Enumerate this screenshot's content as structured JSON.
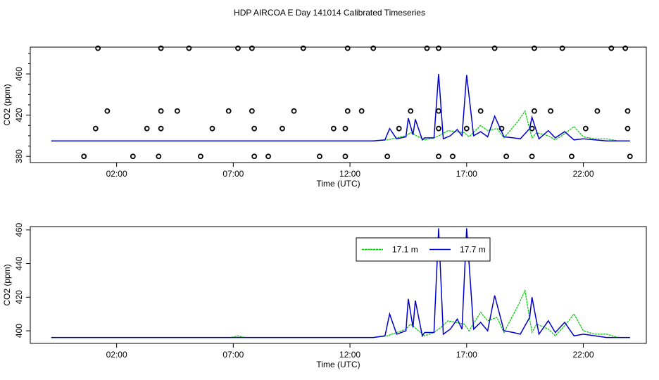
{
  "title": "HDP AIRCOA E  Day 141014  Calibrated Timeseries",
  "colors": {
    "green": "#00c800",
    "blue": "#0000cc",
    "markers": "#000000"
  },
  "chart_data": [
    {
      "type": "scatter",
      "panel": "top",
      "xlabel": "Time (UTC)",
      "ylabel": "CO2 (ppm)",
      "xlim": [
        -1.7,
        24.7
      ],
      "ylim": [
        374,
        486
      ],
      "xticks": [
        2,
        7,
        12,
        17,
        22
      ],
      "xtick_labels": [
        "02:00",
        "07:00",
        "12:00",
        "17:00",
        "22:00"
      ],
      "yticks": [
        380,
        420,
        460
      ],
      "ytick_labels": [
        "380",
        "420",
        "460"
      ],
      "markers": {
        "level_380": [
          0.6,
          2.7,
          3.8,
          5.6,
          7.9,
          8.5,
          10.7,
          11.8,
          13.6,
          15.8,
          16.4,
          18.7,
          19.8,
          21.5,
          24.0
        ],
        "level_407": [
          1.1,
          3.3,
          3.9,
          6.1,
          7.9,
          9.1,
          11.3,
          11.8,
          14.1,
          15.8,
          17.0,
          18.5,
          19.8,
          22.1,
          23.9
        ],
        "level_424": [
          1.6,
          3.9,
          4.6,
          6.8,
          7.8,
          9.6,
          11.9,
          12.5,
          14.6,
          15.8,
          17.6,
          19.9,
          20.6,
          22.6,
          23.9
        ],
        "level_485": [
          1.2,
          3.9,
          5.1,
          7.2,
          7.8,
          10.0,
          11.9,
          13.0,
          15.3,
          15.8,
          18.2,
          19.9,
          21.1,
          23.2,
          23.8
        ]
      },
      "series": [
        {
          "color": "#00c800",
          "x": [
            -0.8,
            13.0,
            13.6,
            14.0,
            14.4,
            14.6,
            15.2,
            15.6,
            15.9,
            16.2,
            16.9,
            17.1,
            17.6,
            17.9,
            18.3,
            18.6,
            19.2,
            19.5,
            19.8,
            20.0,
            20.5,
            20.8,
            21.2,
            21.6,
            22.0,
            22.5,
            23.0,
            23.5,
            24.0
          ],
          "y": [
            395,
            395,
            396,
            398,
            400,
            403,
            396,
            398,
            401,
            405,
            403,
            399,
            410,
            405,
            407,
            398,
            414,
            424,
            398,
            403,
            400,
            396,
            402,
            409,
            399,
            397,
            397,
            395,
            395
          ]
        },
        {
          "color": "#0000cc",
          "x": [
            -0.8,
            13.0,
            13.5,
            13.7,
            14.0,
            14.4,
            14.5,
            14.7,
            14.8,
            15.1,
            15.2,
            15.6,
            15.8,
            16.0,
            16.3,
            16.6,
            16.8,
            17.0,
            17.3,
            17.6,
            17.9,
            18.2,
            18.6,
            19.0,
            19.3,
            19.7,
            19.8,
            20.1,
            20.5,
            20.8,
            21.2,
            21.6,
            22.0,
            22.5,
            23.0,
            24.0
          ],
          "y": [
            395,
            395,
            396,
            407,
            397,
            399,
            417,
            401,
            416,
            396,
            398,
            398,
            460,
            397,
            400,
            406,
            400,
            459,
            400,
            404,
            399,
            419,
            399,
            398,
            397,
            407,
            418,
            397,
            405,
            398,
            404,
            396,
            397,
            396,
            395,
            395
          ]
        }
      ]
    },
    {
      "type": "line",
      "panel": "bottom",
      "xlabel": "Time (UTC)",
      "ylabel": "CO2 (ppm)",
      "xlim": [
        -1.7,
        24.7
      ],
      "ylim": [
        392.5,
        462
      ],
      "xticks": [
        2,
        7,
        12,
        17,
        22
      ],
      "xtick_labels": [
        "02:00",
        "07:00",
        "12:00",
        "17:00",
        "22:00"
      ],
      "yticks": [
        400,
        420,
        440,
        460
      ],
      "ytick_labels": [
        "400",
        "420",
        "440",
        "460"
      ],
      "legend": {
        "position": "top-center",
        "entries": [
          {
            "label": "17.1 m",
            "color": "#00c800"
          },
          {
            "label": "17.7 m",
            "color": "#0000cc"
          }
        ]
      },
      "series": [
        {
          "name": "17.1 m",
          "color": "#00c800",
          "x": [
            -0.8,
            6.9,
            7.2,
            7.5,
            13.0,
            13.6,
            14.0,
            14.4,
            14.6,
            15.2,
            15.6,
            15.9,
            16.2,
            16.9,
            17.1,
            17.6,
            17.9,
            18.3,
            18.6,
            19.2,
            19.5,
            19.8,
            20.0,
            20.5,
            20.8,
            21.2,
            21.6,
            22.0,
            22.5,
            23.0,
            23.5,
            24.0
          ],
          "y": [
            396,
            396,
            397,
            396,
            396,
            397,
            399,
            401,
            404,
            397,
            399,
            402,
            406,
            404,
            400,
            411,
            406,
            408,
            399,
            415,
            424,
            399,
            404,
            401,
            397,
            403,
            410,
            400,
            398,
            398,
            396,
            396
          ]
        },
        {
          "name": "17.7 m",
          "color": "#0000cc",
          "x": [
            -0.8,
            13.0,
            13.5,
            13.7,
            14.0,
            14.4,
            14.5,
            14.7,
            14.8,
            15.1,
            15.2,
            15.6,
            15.8,
            16.0,
            16.3,
            16.6,
            16.8,
            17.0,
            17.3,
            17.6,
            17.9,
            18.2,
            18.6,
            19.0,
            19.3,
            19.7,
            19.8,
            20.1,
            20.5,
            20.8,
            21.2,
            21.6,
            22.0,
            22.5,
            23.0,
            24.0
          ],
          "y": [
            396,
            396,
            397,
            410,
            398,
            400,
            419,
            402,
            418,
            397,
            399,
            399,
            461,
            398,
            401,
            407,
            401,
            461,
            401,
            405,
            400,
            421,
            400,
            399,
            398,
            408,
            420,
            398,
            406,
            399,
            405,
            397,
            398,
            397,
            396,
            396
          ]
        }
      ]
    }
  ]
}
